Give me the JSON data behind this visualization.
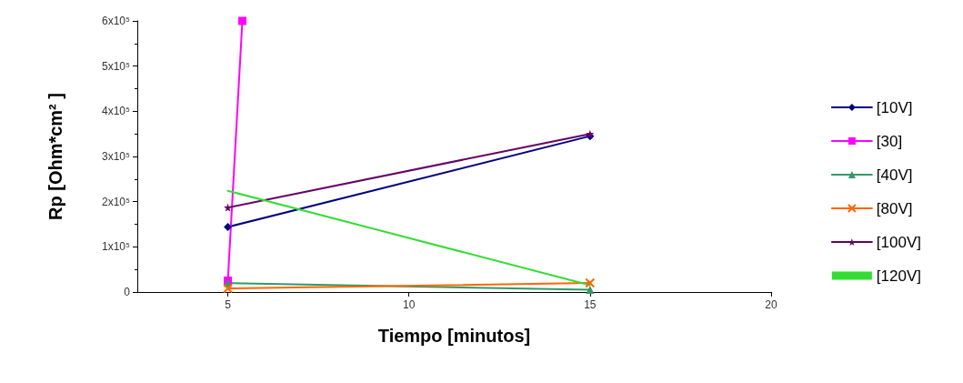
{
  "chart_data": {
    "type": "line",
    "xlabel": "Tiempo [minutos]",
    "ylabel": "Rp [Ohm*cm² ]",
    "x": [
      5,
      15
    ],
    "series": [
      {
        "name": "[10V]",
        "color": "#000080",
        "marker": "diamond",
        "values": [
          144000,
          345000
        ]
      },
      {
        "name": "[30]",
        "color": "#ff00ff",
        "marker": "square",
        "x": [
          5,
          5.4
        ],
        "values": [
          25000,
          600000
        ]
      },
      {
        "name": "[40V]",
        "color": "#339966",
        "marker": "triangle",
        "values": [
          20000,
          5000
        ]
      },
      {
        "name": "[80V]",
        "color": "#ff6600",
        "marker": "cross",
        "values": [
          8000,
          20000
        ]
      },
      {
        "name": "[100V]",
        "color": "#660066",
        "marker": "star",
        "values": [
          187000,
          350000
        ]
      },
      {
        "name": "[120V]",
        "color": "#33dd33",
        "marker": "none",
        "values": [
          224000,
          15000
        ]
      }
    ],
    "xlim": [
      2.5,
      20
    ],
    "xticks": [
      5,
      10,
      15,
      20
    ],
    "ylim": [
      0,
      600000
    ],
    "yticks": [
      0,
      {
        "value": 100000,
        "label": "1x10⁵"
      },
      {
        "value": 200000,
        "label": "2x10⁵"
      },
      {
        "value": 300000,
        "label": "3x10⁵"
      },
      {
        "value": 400000,
        "label": "4x10⁵"
      },
      {
        "value": 500000,
        "label": "5x10⁵"
      },
      {
        "value": 600000,
        "label": "6x10⁵"
      }
    ],
    "grid": false,
    "legend": "right"
  }
}
